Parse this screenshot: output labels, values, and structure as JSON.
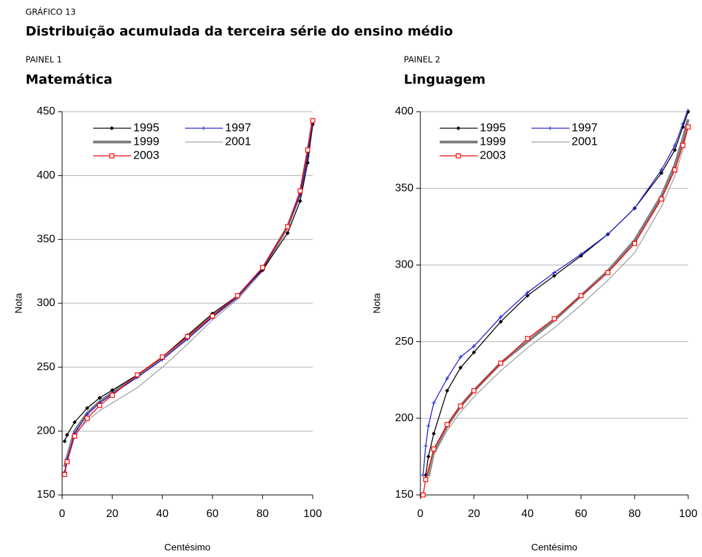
{
  "header": {
    "label": "GRÁFICO 13",
    "title": "Distribuição acumulada da terceira série do ensino médio"
  },
  "chart_data": [
    {
      "type": "line",
      "panel": "PAINEL 1",
      "title": "Matemática",
      "xlabel": "Centésimo",
      "ylabel": "Nota",
      "xlim": [
        0,
        100
      ],
      "xticks": [
        0,
        20,
        40,
        60,
        80,
        100
      ],
      "ylim": [
        150,
        450
      ],
      "yticks": [
        150,
        200,
        250,
        300,
        350,
        400,
        450
      ],
      "grid": true,
      "series": [
        {
          "name": "1995",
          "color": "#000000",
          "line_width": 1.3,
          "marker": "diamond",
          "x": [
            1,
            2,
            5,
            10,
            15,
            20,
            30,
            40,
            50,
            60,
            70,
            80,
            90,
            95,
            98,
            100
          ],
          "values": [
            192,
            197,
            207,
            218,
            226,
            232,
            244,
            258,
            275,
            292,
            306,
            326,
            355,
            380,
            410,
            440
          ]
        },
        {
          "name": "1997",
          "color": "#2020d0",
          "line_width": 1.3,
          "marker": "plus",
          "x": [
            1,
            2,
            5,
            10,
            15,
            20,
            30,
            40,
            50,
            60,
            70,
            80,
            90,
            95,
            98,
            100
          ],
          "values": [
            168,
            178,
            198,
            213,
            222,
            229,
            242,
            256,
            272,
            289,
            305,
            327,
            360,
            385,
            415,
            442
          ]
        },
        {
          "name": "1999",
          "color": "#808080",
          "line_width": 4,
          "marker": "none",
          "x": [
            1,
            2,
            5,
            10,
            15,
            20,
            30,
            40,
            50,
            60,
            70,
            80,
            90,
            95,
            98,
            100
          ],
          "values": [
            172,
            180,
            200,
            214,
            223,
            230,
            243,
            257,
            273,
            290,
            305,
            327,
            360,
            386,
            418,
            443
          ]
        },
        {
          "name": "2001",
          "color": "#a0a0a0",
          "line_width": 1.3,
          "marker": "none",
          "x": [
            1,
            2,
            5,
            10,
            15,
            20,
            30,
            40,
            50,
            60,
            70,
            80,
            90,
            95,
            98,
            100
          ],
          "values": [
            175,
            182,
            198,
            208,
            216,
            222,
            234,
            250,
            268,
            287,
            303,
            325,
            358,
            385,
            415,
            440
          ]
        },
        {
          "name": "2003",
          "color": "#ff0000",
          "line_width": 1.3,
          "marker": "square",
          "x": [
            1,
            2,
            5,
            10,
            15,
            20,
            30,
            40,
            50,
            60,
            70,
            80,
            90,
            95,
            98,
            100
          ],
          "values": [
            166,
            176,
            196,
            210,
            220,
            228,
            244,
            258,
            274,
            290,
            306,
            328,
            360,
            388,
            420,
            443
          ]
        }
      ]
    },
    {
      "type": "line",
      "panel": "PAINEL 2",
      "title": "Linguagem",
      "xlabel": "Centésimo",
      "ylabel": "Nota",
      "xlim": [
        0,
        100
      ],
      "xticks": [
        0,
        20,
        40,
        60,
        80,
        100
      ],
      "ylim": [
        150,
        400
      ],
      "yticks": [
        150,
        200,
        250,
        300,
        350,
        400
      ],
      "grid": true,
      "series": [
        {
          "name": "1995",
          "color": "#000000",
          "line_width": 1.3,
          "marker": "diamond",
          "x": [
            2,
            3,
            5,
            10,
            15,
            20,
            30,
            40,
            50,
            60,
            70,
            80,
            90,
            95,
            98,
            100
          ],
          "values": [
            163,
            175,
            190,
            218,
            233,
            243,
            263,
            280,
            293,
            306,
            320,
            337,
            360,
            375,
            390,
            400
          ]
        },
        {
          "name": "1997",
          "color": "#2020d0",
          "line_width": 1.3,
          "marker": "plus",
          "x": [
            1,
            2,
            3,
            5,
            10,
            15,
            20,
            30,
            40,
            50,
            60,
            70,
            80,
            90,
            95,
            98,
            100
          ],
          "values": [
            163,
            182,
            195,
            210,
            226,
            240,
            247,
            266,
            282,
            295,
            307,
            320,
            337,
            362,
            378,
            392,
            402
          ]
        },
        {
          "name": "1999",
          "color": "#808080",
          "line_width": 4,
          "marker": "none",
          "x": [
            3,
            5,
            10,
            15,
            20,
            30,
            40,
            50,
            60,
            70,
            80,
            90,
            95,
            98,
            100
          ],
          "values": [
            162,
            178,
            195,
            208,
            218,
            236,
            250,
            264,
            280,
            296,
            316,
            345,
            365,
            382,
            395
          ]
        },
        {
          "name": "2001",
          "color": "#a0a0a0",
          "line_width": 1.3,
          "marker": "none",
          "x": [
            3,
            5,
            10,
            15,
            20,
            30,
            40,
            50,
            60,
            70,
            80,
            90,
            95,
            98,
            100
          ],
          "values": [
            162,
            176,
            192,
            204,
            214,
            231,
            246,
            259,
            274,
            290,
            308,
            338,
            358,
            375,
            390
          ]
        },
        {
          "name": "2003",
          "color": "#ff0000",
          "line_width": 1.3,
          "marker": "square",
          "x": [
            1,
            2,
            5,
            10,
            15,
            20,
            30,
            40,
            50,
            60,
            70,
            80,
            90,
            95,
            98,
            100
          ],
          "values": [
            150,
            160,
            180,
            196,
            208,
            218,
            236,
            252,
            265,
            280,
            295,
            314,
            343,
            362,
            378,
            390
          ]
        }
      ]
    }
  ]
}
